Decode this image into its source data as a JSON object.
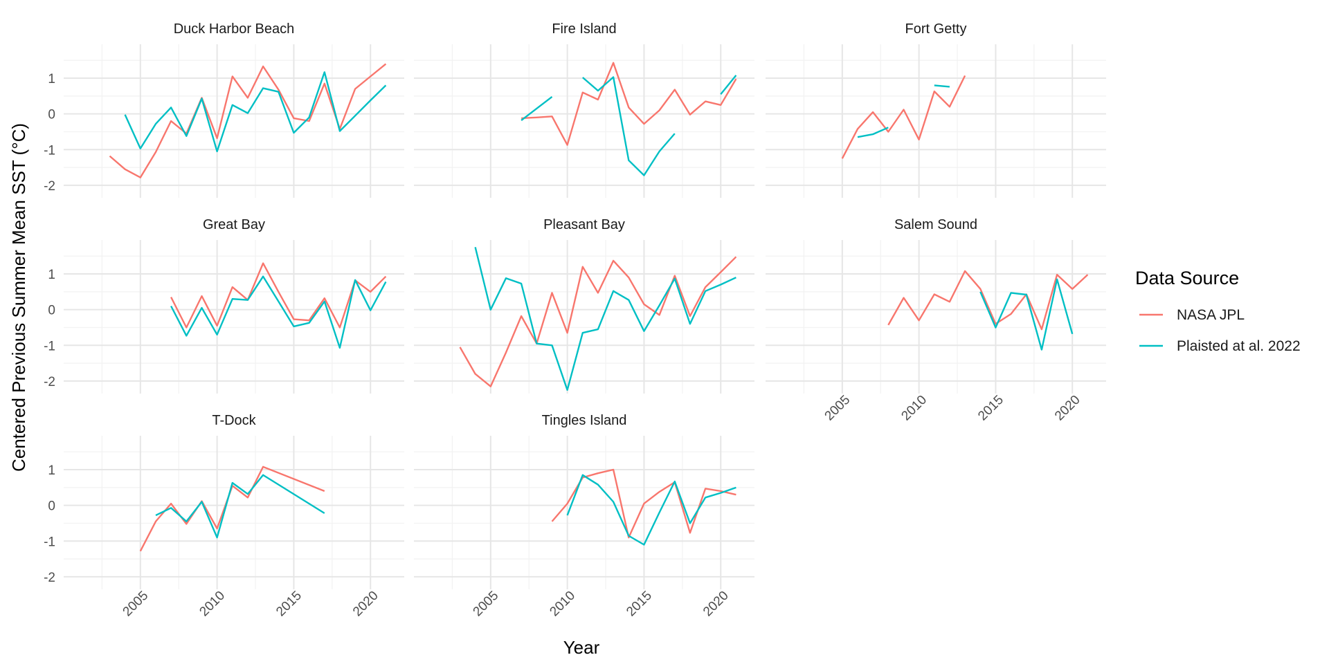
{
  "chart_data": {
    "type": "line",
    "xlabel": "Year",
    "ylabel": "Centered Previous Summer Mean SST (°C)",
    "xlim": [
      2000,
      2022.2
    ],
    "ylim": [
      -2.35,
      1.95
    ],
    "x_ticks": [
      2005,
      2010,
      2015,
      2020
    ],
    "y_ticks": [
      -2,
      -1,
      0,
      1
    ],
    "grid": true,
    "legend": {
      "title": "Data Source",
      "position": "right",
      "entries": [
        {
          "label": "NASA JPL",
          "color": "#F8766D"
        },
        {
          "label": "Plaisted at al. 2022",
          "color": "#00BFC4"
        }
      ]
    },
    "panels": [
      {
        "title": "Duck Harbor Beach",
        "series": [
          {
            "name": "NASA JPL",
            "color": "#F8766D",
            "x": [
              2003,
              2004,
              2005,
              2006,
              2007,
              2008,
              2009,
              2010,
              2011,
              2012,
              2013,
              2014,
              2015,
              2016,
              2017,
              2018,
              2019,
              2020,
              2021
            ],
            "y": [
              -1.18,
              -1.55,
              -1.78,
              -1.07,
              -0.2,
              -0.55,
              0.45,
              -0.68,
              1.05,
              0.45,
              1.33,
              0.68,
              -0.12,
              -0.2,
              0.85,
              -0.42,
              0.7,
              1.05,
              1.4
            ]
          },
          {
            "name": "Plaisted at al. 2022",
            "color": "#00BFC4",
            "x": [
              2004,
              2005,
              2006,
              2007,
              2008,
              2009,
              2010,
              2011,
              2012,
              2013,
              2014,
              2015,
              2016,
              2017,
              2018,
              2019,
              2020,
              2021
            ],
            "y": [
              -0.02,
              -0.97,
              -0.28,
              0.18,
              -0.62,
              0.43,
              -1.05,
              0.25,
              0.02,
              0.72,
              0.62,
              -0.53,
              -0.1,
              1.17,
              -0.48,
              -0.05,
              0.38,
              0.8
            ]
          }
        ]
      },
      {
        "title": "Fire Island",
        "series": [
          {
            "name": "NASA JPL",
            "color": "#F8766D",
            "x": [
              2007,
              2008,
              2009,
              2010,
              2011,
              2012,
              2013,
              2014,
              2015,
              2016,
              2017,
              2018,
              2019,
              2020,
              2021
            ],
            "y": [
              -0.12,
              -0.1,
              -0.07,
              -0.87,
              0.6,
              0.4,
              1.43,
              0.18,
              -0.28,
              0.1,
              0.68,
              -0.02,
              0.35,
              0.25,
              0.98
            ]
          },
          {
            "name": "Plaisted at al. 2022",
            "color": "#00BFC4",
            "x": [
              2007,
              2008,
              2009,
              null,
              2011,
              2012,
              2013,
              2014,
              2015,
              2016,
              2017,
              null,
              2020,
              2021
            ],
            "y": [
              -0.18,
              0.15,
              0.48,
              null,
              1.02,
              0.65,
              1.03,
              -1.3,
              -1.72,
              -1.05,
              -0.55,
              null,
              0.55,
              1.08
            ]
          }
        ]
      },
      {
        "title": "Fort Getty",
        "series": [
          {
            "name": "NASA JPL",
            "color": "#F8766D",
            "x": [
              2005,
              2006,
              2007,
              2008,
              2009,
              2010,
              2011,
              2012,
              2013
            ],
            "y": [
              -1.25,
              -0.42,
              0.05,
              -0.5,
              0.12,
              -0.72,
              0.63,
              0.2,
              1.07
            ]
          },
          {
            "name": "Plaisted at al. 2022",
            "color": "#00BFC4",
            "x": [
              2006,
              2007,
              2008,
              null,
              2011,
              2012
            ],
            "y": [
              -0.65,
              -0.57,
              -0.38,
              null,
              0.8,
              0.76
            ]
          }
        ]
      },
      {
        "title": "Great Bay",
        "series": [
          {
            "name": "NASA JPL",
            "color": "#F8766D",
            "x": [
              2007,
              2008,
              2009,
              2010,
              2011,
              2012,
              2013,
              2014,
              2015,
              2016,
              2017,
              2018,
              2019,
              2020,
              2021
            ],
            "y": [
              0.35,
              -0.5,
              0.38,
              -0.45,
              0.63,
              0.27,
              1.3,
              0.5,
              -0.27,
              -0.3,
              0.32,
              -0.5,
              0.82,
              0.5,
              0.93
            ]
          },
          {
            "name": "Plaisted at al. 2022",
            "color": "#00BFC4",
            "x": [
              2007,
              2008,
              2009,
              2010,
              2011,
              2012,
              2013,
              2014,
              2015,
              2016,
              2017,
              2018,
              2019,
              2020,
              2021
            ],
            "y": [
              0.1,
              -0.73,
              0.05,
              -0.7,
              0.3,
              0.27,
              0.93,
              0.23,
              -0.47,
              -0.37,
              0.23,
              -1.07,
              0.83,
              -0.02,
              0.78
            ]
          }
        ]
      },
      {
        "title": "Pleasant Bay",
        "series": [
          {
            "name": "NASA JPL",
            "color": "#F8766D",
            "x": [
              2003,
              2004,
              2005,
              2006,
              2007,
              2008,
              2009,
              2010,
              2011,
              2012,
              2013,
              2014,
              2015,
              2016,
              2017,
              2018,
              2019,
              2020,
              2021
            ],
            "y": [
              -1.05,
              -1.8,
              -2.15,
              -1.2,
              -0.18,
              -0.95,
              0.47,
              -0.65,
              1.2,
              0.47,
              1.37,
              0.9,
              0.15,
              -0.15,
              0.95,
              -0.18,
              0.63,
              1.05,
              1.48
            ]
          },
          {
            "name": "Plaisted at al. 2022",
            "color": "#00BFC4",
            "x": [
              2004,
              2005,
              2006,
              2007,
              2008,
              2009,
              2010,
              2011,
              2012,
              2013,
              2014,
              2015,
              2016,
              2017,
              2018,
              2019,
              2020,
              2021
            ],
            "y": [
              1.75,
              0.0,
              0.88,
              0.73,
              -0.95,
              -1.0,
              -2.25,
              -0.65,
              -0.55,
              0.52,
              0.27,
              -0.6,
              0.12,
              0.87,
              -0.4,
              0.52,
              0.7,
              0.9
            ]
          }
        ]
      },
      {
        "title": "Salem Sound",
        "series": [
          {
            "name": "NASA JPL",
            "color": "#F8766D",
            "x": [
              2008,
              2009,
              2010,
              2011,
              2012,
              2013,
              2014,
              2015,
              2016,
              2017,
              2018,
              2019,
              2020,
              2021
            ],
            "y": [
              -0.43,
              0.33,
              -0.3,
              0.43,
              0.22,
              1.08,
              0.58,
              -0.4,
              -0.12,
              0.43,
              -0.55,
              0.98,
              0.58,
              0.98
            ]
          },
          {
            "name": "Plaisted at al. 2022",
            "color": "#00BFC4",
            "x": [
              2014,
              2015,
              2016,
              2017,
              2018,
              2019,
              2020
            ],
            "y": [
              0.5,
              -0.5,
              0.47,
              0.42,
              -1.12,
              0.85,
              -0.68
            ]
          }
        ]
      },
      {
        "title": "T-Dock",
        "series": [
          {
            "name": "NASA JPL",
            "color": "#F8766D",
            "x": [
              2005,
              2006,
              2007,
              2008,
              2009,
              2010,
              2011,
              2012,
              2013,
              2017
            ],
            "y": [
              -1.28,
              -0.45,
              0.05,
              -0.52,
              0.12,
              -0.65,
              0.55,
              0.22,
              1.08,
              0.4
            ]
          },
          {
            "name": "Plaisted at al. 2022",
            "color": "#00BFC4",
            "x": [
              2006,
              2007,
              2008,
              2009,
              2010,
              2011,
              2012,
              2013,
              2017
            ],
            "y": [
              -0.28,
              -0.07,
              -0.45,
              0.1,
              -0.9,
              0.63,
              0.32,
              0.85,
              -0.22
            ]
          }
        ]
      },
      {
        "title": "Tingles Island",
        "series": [
          {
            "name": "NASA JPL",
            "color": "#F8766D",
            "x": [
              2009,
              2010,
              2011,
              2012,
              2013,
              2014,
              2015,
              2016,
              2017,
              2018,
              2019,
              2020,
              2021
            ],
            "y": [
              -0.45,
              0.05,
              0.78,
              0.9,
              1.0,
              -0.9,
              0.05,
              0.38,
              0.65,
              -0.77,
              0.47,
              0.4,
              0.3
            ]
          },
          {
            "name": "Plaisted at al. 2022",
            "color": "#00BFC4",
            "x": [
              2010,
              2011,
              2012,
              2013,
              2014,
              2015,
              2016,
              2017,
              2018,
              2019,
              2020,
              2021
            ],
            "y": [
              -0.28,
              0.85,
              0.58,
              0.1,
              -0.85,
              -1.1,
              -0.2,
              0.67,
              -0.5,
              0.22,
              0.35,
              0.5
            ]
          }
        ]
      }
    ]
  }
}
